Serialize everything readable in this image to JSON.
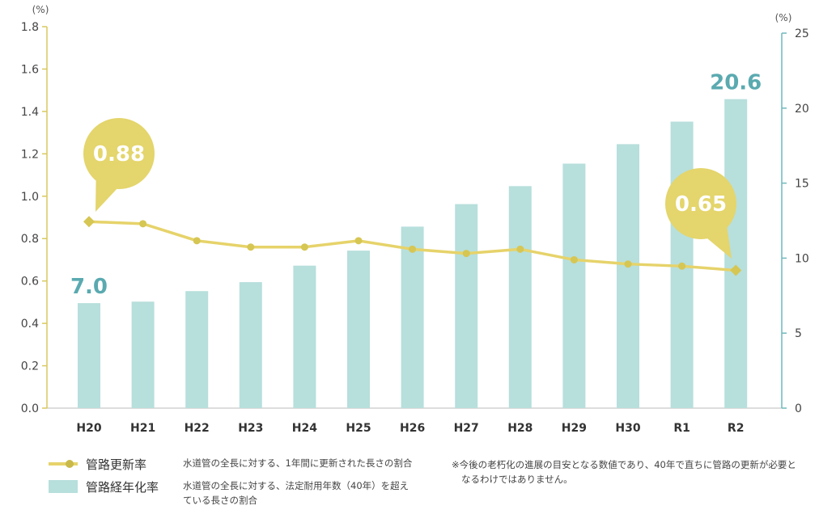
{
  "chart_data": {
    "type": "bar+line",
    "categories": [
      "H20",
      "H21",
      "H22",
      "H23",
      "H24",
      "H25",
      "H26",
      "H27",
      "H28",
      "H29",
      "H30",
      "R1",
      "R2"
    ],
    "series": [
      {
        "name": "管路更新率",
        "type": "line",
        "axis": "left",
        "color": "#e6d36a",
        "values": [
          0.88,
          0.87,
          0.79,
          0.76,
          0.76,
          0.79,
          0.75,
          0.73,
          0.75,
          0.7,
          0.68,
          0.67,
          0.65
        ]
      },
      {
        "name": "管路経年化率",
        "type": "bar",
        "axis": "right",
        "color": "#b7dfdc",
        "values": [
          7.0,
          7.1,
          7.8,
          8.4,
          9.5,
          10.5,
          12.1,
          13.6,
          14.8,
          16.3,
          17.6,
          19.1,
          20.6
        ]
      }
    ],
    "y_left": {
      "unit": "(%)",
      "range": [
        0,
        1.8
      ],
      "ticks": [
        "0.0",
        "0.2",
        "0.4",
        "0.6",
        "0.8",
        "1.0",
        "1.2",
        "1.4",
        "1.6",
        "1.8"
      ],
      "color": "#d8c95e"
    },
    "y_right": {
      "unit": "(%)",
      "range": [
        0,
        25
      ],
      "ticks": [
        "0",
        "5",
        "10",
        "15",
        "20",
        "25"
      ],
      "color": "#6fb8bd"
    },
    "callouts": {
      "line_first": "0.88",
      "line_last": "0.65",
      "bar_first": "7.0",
      "bar_last": "20.6"
    },
    "grid": false
  },
  "legend": {
    "items": [
      {
        "name": "管路更新率",
        "desc": "水道管の全長に対する、1年間に更新された長さの割合"
      },
      {
        "name": "管路経年化率",
        "desc": "水道管の全長に対する、法定耐用年数（40年）を超えている長さの割合"
      }
    ],
    "note": "※今後の老朽化の進展の目安となる数値であり、40年で直ちに管路の更新が必要となるわけではありません。"
  }
}
